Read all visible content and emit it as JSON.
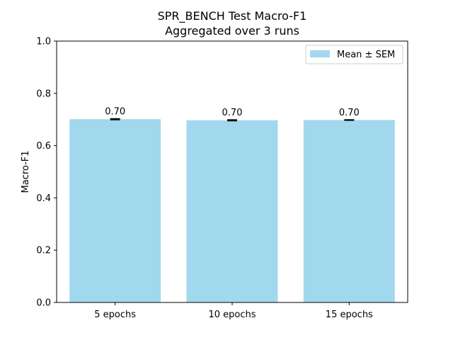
{
  "chart_data": {
    "type": "bar",
    "title": "SPR_BENCH Test Macro-F1",
    "subtitle": "Aggregated over 3 runs",
    "xlabel": "",
    "ylabel": "Macro-F1",
    "ylim": [
      0,
      1.0
    ],
    "yticks": [
      "0.0",
      "0.2",
      "0.4",
      "0.6",
      "0.8",
      "1.0"
    ],
    "categories": [
      "5 epochs",
      "10 epochs",
      "15 epochs"
    ],
    "values": [
      0.701,
      0.697,
      0.698
    ],
    "errors": [
      0.002,
      0.002,
      0.001
    ],
    "data_labels": [
      "0.70",
      "0.70",
      "0.70"
    ],
    "legend": {
      "label": "Mean ± SEM",
      "placement": "top-right"
    },
    "grid": false,
    "bar_color": "#a2d8ee",
    "error_color": "#000000"
  }
}
